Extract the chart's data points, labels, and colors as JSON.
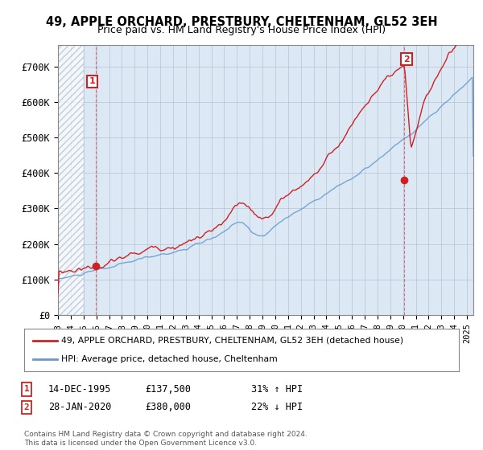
{
  "title": "49, APPLE ORCHARD, PRESTBURY, CHELTENHAM, GL52 3EH",
  "subtitle": "Price paid vs. HM Land Registry's House Price Index (HPI)",
  "ylabel_ticks": [
    "£0",
    "£100K",
    "£200K",
    "£300K",
    "£400K",
    "£500K",
    "£600K",
    "£700K"
  ],
  "ytick_vals": [
    0,
    100000,
    200000,
    300000,
    400000,
    500000,
    600000,
    700000
  ],
  "ylim": [
    0,
    760000
  ],
  "xlim_start": 1993.0,
  "xlim_end": 2025.5,
  "hpi_color": "#6699cc",
  "price_color": "#cc2222",
  "marker1_x": 1995.96,
  "marker1_y": 137500,
  "marker2_x": 2020.07,
  "marker2_y": 380000,
  "legend_label1": "49, APPLE ORCHARD, PRESTBURY, CHELTENHAM, GL52 3EH (detached house)",
  "legend_label2": "HPI: Average price, detached house, Cheltenham",
  "annotation1_date": "14-DEC-1995",
  "annotation1_price": "£137,500",
  "annotation1_hpi": "31% ↑ HPI",
  "annotation2_date": "28-JAN-2020",
  "annotation2_price": "£380,000",
  "annotation2_hpi": "22% ↓ HPI",
  "footer": "Contains HM Land Registry data © Crown copyright and database right 2024.\nThis data is licensed under the Open Government Licence v3.0.",
  "bg_color": "#dde8f5",
  "hatch_color": "#c0d0e8",
  "grid_color": "#aabbd0"
}
